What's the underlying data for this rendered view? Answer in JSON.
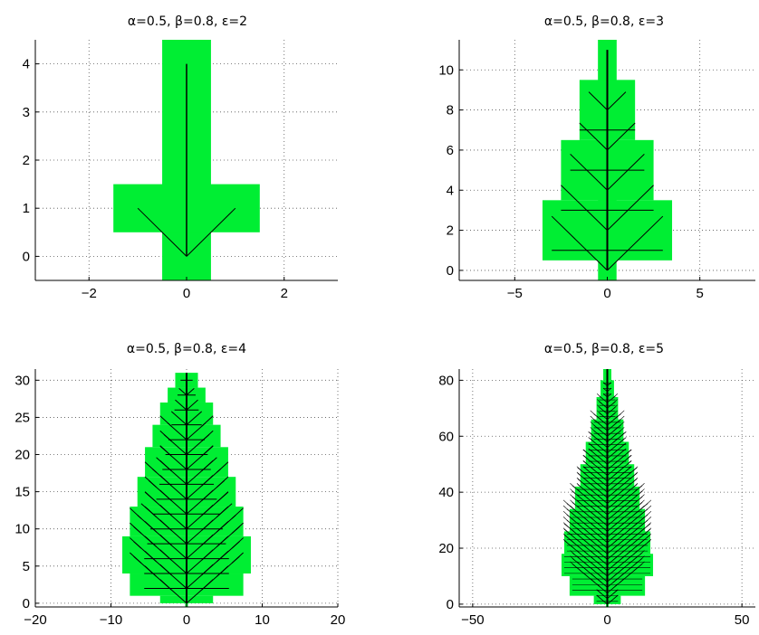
{
  "figure": {
    "colors": {
      "fill": "#00ee33",
      "tree": "#000000",
      "grid": "#555555",
      "axis": "#000000",
      "background": "#ffffff"
    }
  },
  "chart_data": [
    {
      "type": "area",
      "title": "α=0.5,   β=0.8, ε=2",
      "xlabel": "",
      "ylabel": "",
      "xlim": [
        -3.1,
        3.1
      ],
      "ylim": [
        -0.5,
        4.5
      ],
      "xticks": [
        -2,
        0,
        2
      ],
      "yticks": [
        0,
        1,
        2,
        3,
        4
      ],
      "xticklabels": [
        "−2",
        "0",
        "2"
      ],
      "yticklabels": [
        "0",
        "1",
        "2",
        "3",
        "4"
      ],
      "grid": true,
      "series": [
        {
          "fill_rects": [
            [
              -0.5,
              -0.5,
              1,
              5
            ],
            [
              -1.5,
              0.5,
              3,
              1
            ]
          ]
        },
        {
          "trunk_top": 4,
          "branches": [
            [
              1,
              1,
              -1,
              1
            ],
            [
              1,
              1,
              1,
              1
            ]
          ]
        }
      ]
    },
    {
      "type": "area",
      "title": "α=0.5,   β=0.8, ε=3",
      "xlabel": "",
      "ylabel": "",
      "xlim": [
        -8,
        8
      ],
      "ylim": [
        -0.5,
        11.5
      ],
      "xticks": [
        -5,
        0,
        5
      ],
      "yticks": [
        0,
        2,
        4,
        6,
        8,
        10
      ],
      "xticklabels": [
        "−5",
        "0",
        "5"
      ],
      "yticklabels": [
        "0",
        "2",
        "4",
        "6",
        "8",
        "10"
      ],
      "grid": true,
      "series": [
        {
          "fill_rects": [
            [
              -0.5,
              -0.5,
              1,
              12
            ],
            [
              -3.5,
              0.5,
              7,
              3
            ],
            [
              -2.5,
              3.5,
              5,
              3
            ],
            [
              -1.5,
              6.5,
              3,
              3
            ],
            [
              -0.5,
              9.5,
              1,
              2
            ]
          ]
        },
        {
          "trunk_top": 11,
          "branches": [
            [
              1,
              2,
              -2,
              1
            ],
            [
              2,
              2,
              -2,
              1
            ],
            [
              3,
              2,
              -2,
              0
            ],
            [
              4,
              2,
              -1,
              0
            ],
            [
              5,
              2,
              -1,
              0
            ],
            [
              6,
              2,
              -1,
              0
            ],
            [
              7,
              1,
              -1,
              0
            ],
            [
              8,
              1,
              -1,
              0
            ]
          ]
        }
      ]
    },
    {
      "type": "area",
      "title": "α=0.5,   β=0.8, ε=4",
      "xlabel": "",
      "ylabel": "",
      "xlim": [
        -20,
        20
      ],
      "ylim": [
        -0.5,
        31.5
      ],
      "xticks": [
        -20,
        -10,
        0,
        10,
        20
      ],
      "yticks": [
        0,
        5,
        10,
        15,
        20,
        25,
        30
      ],
      "xticklabels": [
        "−20",
        "−10",
        "0",
        "10",
        "20"
      ],
      "yticklabels": [
        "0",
        "5",
        "10",
        "15",
        "20",
        "25",
        "30"
      ],
      "grid": true,
      "series": [
        {
          "profile": [
            [
              0,
              3.5
            ],
            [
              1,
              7.5
            ],
            [
              4,
              8.5
            ],
            [
              9,
              7.5
            ],
            [
              13,
              6.5
            ],
            [
              17,
              5.5
            ],
            [
              21,
              4.5
            ],
            [
              24,
              3.5
            ],
            [
              27,
              2.5
            ],
            [
              29,
              1.5
            ],
            [
              31,
              1
            ]
          ],
          "gap_notches": true
        },
        {
          "trunk_top": 31,
          "levels": [
            1,
            3,
            5,
            7,
            9,
            11,
            13,
            15,
            17,
            19,
            21,
            23,
            25,
            27,
            29
          ],
          "spread": [
            7,
            7,
            7,
            6.5,
            6,
            5.5,
            5,
            4.5,
            4,
            3.5,
            3,
            2.5,
            2,
            1.5,
            1
          ]
        }
      ]
    },
    {
      "type": "area",
      "title": "α=0.5,   β=0.8, ε=5",
      "xlabel": "",
      "ylabel": "",
      "xlim": [
        -55,
        55
      ],
      "ylim": [
        -1,
        84
      ],
      "xticks": [
        -50,
        0,
        50
      ],
      "yticks": [
        0,
        20,
        40,
        60,
        80
      ],
      "xticklabels": [
        "−50",
        "0",
        "50"
      ],
      "yticklabels": [
        "0",
        "20",
        "40",
        "60",
        "80"
      ],
      "grid": true,
      "series": [
        {
          "profile": [
            [
              0,
              5
            ],
            [
              3,
              14
            ],
            [
              10,
              17
            ],
            [
              18,
              16
            ],
            [
              26,
              14
            ],
            [
              34,
              12
            ],
            [
              42,
              10
            ],
            [
              50,
              8
            ],
            [
              58,
              6
            ],
            [
              66,
              4
            ],
            [
              74,
              2.5
            ],
            [
              80,
              1.5
            ],
            [
              84,
              0.5
            ]
          ]
        },
        {
          "trunk_top": 84,
          "step": 2
        }
      ]
    }
  ]
}
